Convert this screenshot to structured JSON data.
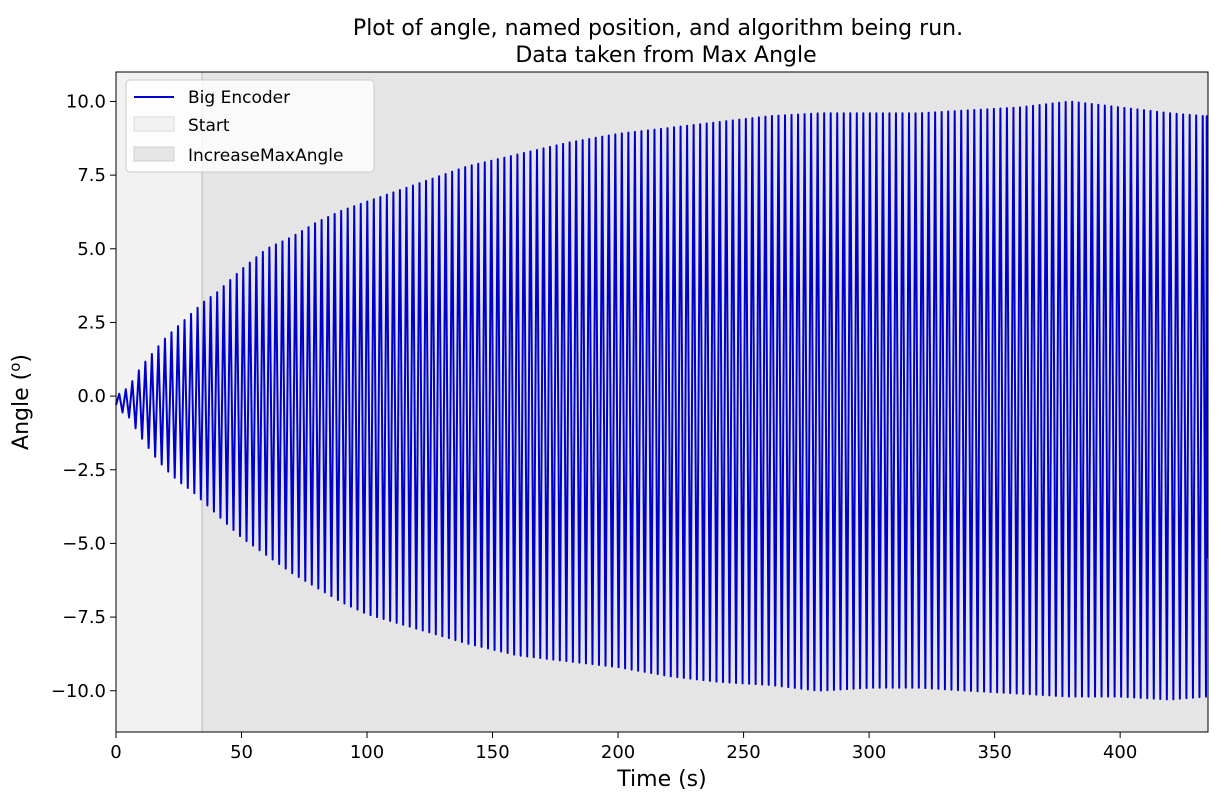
{
  "chart_data": {
    "type": "line",
    "title": "Plot of angle, named position, and algorithm being run.",
    "subtitle": "Data taken from Max Angle",
    "xlabel": "Time (s)",
    "ylabel_main": "Angle (",
    "ylabel_sup": "o",
    "ylabel_end": ")",
    "xlim": [
      0,
      435
    ],
    "ylim": [
      -11.4,
      11.0
    ],
    "xticks": [
      0,
      50,
      100,
      150,
      200,
      250,
      300,
      350,
      400
    ],
    "xtick_labels": [
      "0",
      "50",
      "100",
      "150",
      "200",
      "250",
      "300",
      "350",
      "400"
    ],
    "yticks": [
      10.0,
      7.5,
      5.0,
      2.5,
      0.0,
      -2.5,
      -5.0,
      -7.5,
      -10.0
    ],
    "ytick_labels": [
      "10.0",
      "7.5",
      "5.0",
      "2.5",
      "0.0",
      "−2.5",
      "−5.0",
      "−7.5",
      "−10.0"
    ],
    "grid": false,
    "legend_position": "top-left",
    "regions": [
      {
        "name": "Start",
        "x_start": 0,
        "x_end": 34.3,
        "color": "#f2f2f2"
      },
      {
        "name": "IncreaseMaxAngle",
        "x_start": 34.3,
        "x_end": 435,
        "color": "#e5e5e5"
      }
    ],
    "series": [
      {
        "name": "Big Encoder",
        "color": "#0000cc",
        "kind": "oscillation",
        "period_s": 2.6,
        "end_t": 434.5,
        "end_value": -5.5,
        "envelope": {
          "t": [
            0,
            5,
            10,
            15,
            20,
            25,
            30,
            35,
            40,
            50,
            60,
            70,
            80,
            90,
            100,
            120,
            140,
            160,
            180,
            200,
            220,
            240,
            260,
            280,
            300,
            320,
            340,
            360,
            380,
            400,
            420,
            434
          ],
          "max": [
            0.0,
            0.3,
            1.0,
            1.5,
            2.0,
            2.4,
            2.8,
            3.2,
            3.5,
            4.3,
            5.0,
            5.4,
            5.9,
            6.3,
            6.6,
            7.2,
            7.8,
            8.2,
            8.6,
            8.9,
            9.1,
            9.3,
            9.5,
            9.6,
            9.6,
            9.6,
            9.7,
            9.8,
            10.0,
            9.8,
            9.6,
            9.5
          ],
          "min": [
            -0.4,
            -0.7,
            -1.4,
            -2.0,
            -2.5,
            -2.9,
            -3.2,
            -3.6,
            -4.0,
            -4.8,
            -5.4,
            -6.0,
            -6.5,
            -7.0,
            -7.4,
            -7.9,
            -8.4,
            -8.8,
            -9.0,
            -9.2,
            -9.5,
            -9.7,
            -9.8,
            -10.0,
            -9.9,
            -9.9,
            -10.0,
            -10.1,
            -10.2,
            -10.2,
            -10.3,
            -10.2
          ]
        }
      }
    ],
    "legend_entries": [
      "Big Encoder",
      "Start",
      "IncreaseMaxAngle"
    ]
  }
}
